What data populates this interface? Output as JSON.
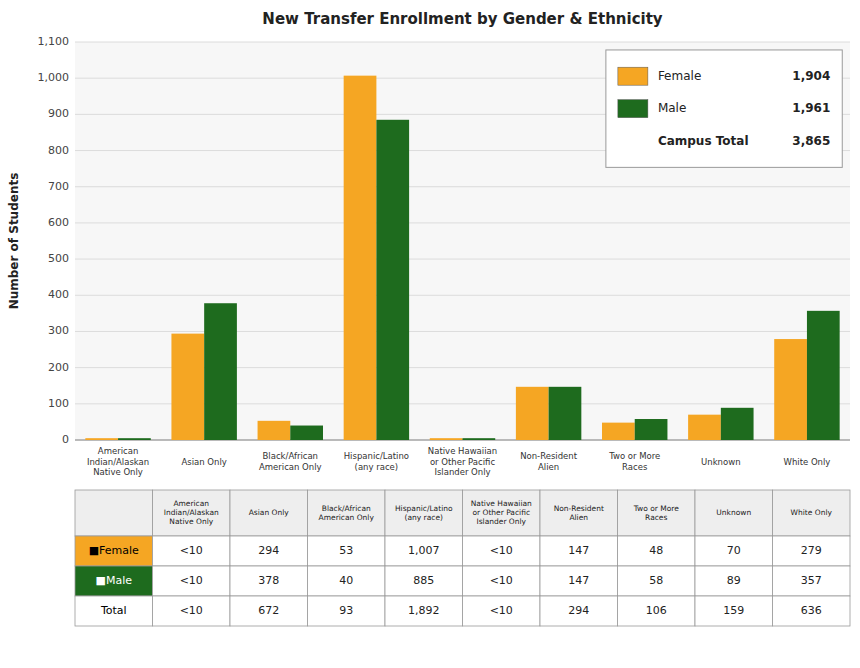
{
  "chart_data": {
    "type": "bar",
    "title": "New Transfer Enrollment by Gender & Ethnicity",
    "ylabel": "Number of Students",
    "categories": [
      "American\nIndian/Alaskan\nNative Only",
      "Asian Only",
      "Black/African\nAmerican Only",
      "Hispanic/Latino\n(any race)",
      "Native Hawaiian\nor Other Pacific\nIslander Only",
      "Non-Resident\nAlien",
      "Two or More\nRaces",
      "Unknown",
      "White Only"
    ],
    "series": [
      {
        "name": "Female",
        "color": "#F5A623",
        "values": [
          5,
          294,
          53,
          1007,
          5,
          147,
          48,
          70,
          279
        ],
        "value_labels": [
          "<10",
          "294",
          "53",
          "1,007",
          "<10",
          "147",
          "48",
          "70",
          "279"
        ],
        "table_label": "■Female",
        "total": {
          "value": 1904,
          "label": "1,904"
        }
      },
      {
        "name": "Male",
        "color": "#1E6B1E",
        "values": [
          5,
          378,
          40,
          885,
          5,
          147,
          58,
          89,
          357
        ],
        "value_labels": [
          "<10",
          "378",
          "40",
          "885",
          "<10",
          "147",
          "58",
          "89",
          "357"
        ],
        "table_label": "■Male",
        "total": {
          "value": 1961,
          "label": "1,961"
        }
      }
    ],
    "campus_total": {
      "name": "Campus Total",
      "value": 3865,
      "label": "3,865"
    },
    "table_total": {
      "name": "Total",
      "labels": [
        "<10",
        "672",
        "93",
        "1,892",
        "<10",
        "294",
        "106",
        "159",
        "636"
      ]
    },
    "ylim": [
      0,
      1100
    ],
    "yticks": [
      0,
      100,
      200,
      300,
      400,
      500,
      600,
      700,
      800,
      900,
      {
        "value": 1000,
        "label": "1,000"
      },
      {
        "value": 1100,
        "label": "1,100"
      }
    ],
    "grid": true,
    "legend": "upper right"
  }
}
